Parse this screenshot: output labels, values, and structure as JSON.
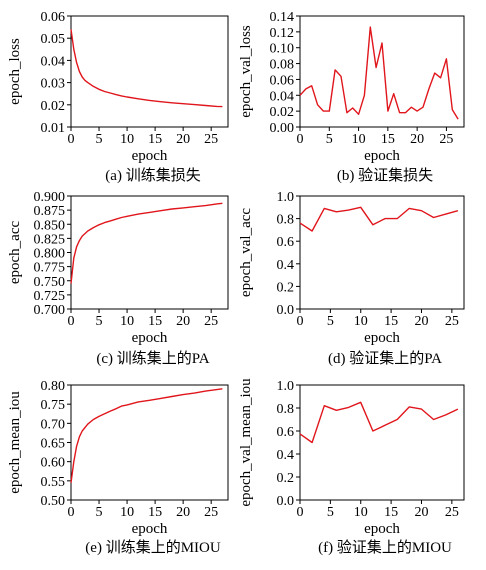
{
  "colors": {
    "line": "#e0161c",
    "axis": "#000000",
    "background": "#ffffff"
  },
  "chart_data": [
    {
      "type": "line",
      "caption": "(a) 训练集损失",
      "xlabel": "epoch",
      "ylabel": "epoch_loss",
      "xlim": [
        0,
        28
      ],
      "ylim": [
        0.01,
        0.06
      ],
      "xticks": [
        0,
        5,
        10,
        15,
        20,
        25
      ],
      "yticks": [
        0.01,
        0.02,
        0.03,
        0.04,
        0.05,
        0.06
      ],
      "ytick_labels": [
        "0.01",
        "0.02",
        "0.03",
        "0.04",
        "0.05",
        "0.06"
      ],
      "grid": false,
      "series": [
        {
          "x": [
            0,
            0.5,
            1,
            1.5,
            2,
            2.5,
            3,
            4,
            5,
            6,
            7,
            8,
            9,
            10,
            12,
            14,
            16,
            18,
            20,
            22,
            24,
            26,
            27
          ],
          "y": [
            0.054,
            0.045,
            0.039,
            0.035,
            0.0325,
            0.031,
            0.03,
            0.0283,
            0.027,
            0.026,
            0.0253,
            0.0246,
            0.024,
            0.0235,
            0.0227,
            0.022,
            0.0214,
            0.0209,
            0.0205,
            0.0201,
            0.0197,
            0.0193,
            0.0192
          ]
        }
      ]
    },
    {
      "type": "line",
      "caption": "(b) 验证集损失",
      "xlabel": "epoch",
      "ylabel": "epoch_val_loss",
      "xlim": [
        0,
        28
      ],
      "ylim": [
        0,
        0.14
      ],
      "xticks": [
        0,
        5,
        10,
        15,
        20,
        25
      ],
      "yticks": [
        0,
        0.02,
        0.04,
        0.06,
        0.08,
        0.1,
        0.12,
        0.14
      ],
      "ytick_labels": [
        "0.00",
        "0.02",
        "0.04",
        "0.06",
        "0.08",
        "0.10",
        "0.12",
        "0.14"
      ],
      "grid": false,
      "series": [
        {
          "x": [
            0,
            1,
            2,
            3,
            4,
            5,
            6,
            7,
            8,
            9,
            10,
            11,
            12,
            13,
            14,
            15,
            16,
            17,
            18,
            19,
            20,
            21,
            22,
            23,
            24,
            25,
            26,
            27
          ],
          "y": [
            0.04,
            0.048,
            0.052,
            0.028,
            0.02,
            0.02,
            0.072,
            0.064,
            0.018,
            0.024,
            0.016,
            0.04,
            0.126,
            0.075,
            0.106,
            0.02,
            0.042,
            0.018,
            0.018,
            0.025,
            0.02,
            0.025,
            0.048,
            0.068,
            0.062,
            0.086,
            0.022,
            0.01
          ]
        }
      ]
    },
    {
      "type": "line",
      "caption": "(c) 训练集上的PA",
      "xlabel": "epoch",
      "ylabel": "epoch_acc",
      "xlim": [
        0,
        28
      ],
      "ylim": [
        0.7,
        0.9
      ],
      "xticks": [
        0,
        5,
        10,
        15,
        20,
        25
      ],
      "yticks": [
        0.7,
        0.725,
        0.75,
        0.775,
        0.8,
        0.825,
        0.85,
        0.875,
        0.9
      ],
      "ytick_labels": [
        "0.700",
        "0.725",
        "0.750",
        "0.775",
        "0.800",
        "0.825",
        "0.850",
        "0.875",
        "0.900"
      ],
      "grid": false,
      "series": [
        {
          "x": [
            0,
            0.5,
            1,
            1.5,
            2,
            3,
            4,
            5,
            6,
            7,
            8,
            9,
            10,
            12,
            14,
            16,
            18,
            20,
            22,
            24,
            26,
            27
          ],
          "y": [
            0.745,
            0.79,
            0.81,
            0.821,
            0.829,
            0.838,
            0.844,
            0.849,
            0.853,
            0.856,
            0.859,
            0.862,
            0.864,
            0.868,
            0.871,
            0.874,
            0.877,
            0.879,
            0.881,
            0.883,
            0.886,
            0.887
          ]
        }
      ]
    },
    {
      "type": "line",
      "caption": "(d) 验证集上的PA",
      "xlabel": "epoch",
      "ylabel": "epoch_val_acc",
      "xlim": [
        0,
        27
      ],
      "ylim": [
        0,
        1.0
      ],
      "xticks": [
        0,
        5,
        10,
        15,
        20,
        25
      ],
      "yticks": [
        0,
        0.2,
        0.4,
        0.6,
        0.8,
        1.0
      ],
      "ytick_labels": [
        "0.0",
        "0.2",
        "0.4",
        "0.6",
        "0.8",
        "1.0"
      ],
      "grid": false,
      "series": [
        {
          "x": [
            0,
            2,
            4,
            6,
            8,
            10,
            12,
            14,
            16,
            18,
            20,
            22,
            24,
            26
          ],
          "y": [
            0.76,
            0.69,
            0.89,
            0.86,
            0.875,
            0.9,
            0.745,
            0.8,
            0.8,
            0.89,
            0.87,
            0.81,
            0.84,
            0.87
          ]
        }
      ]
    },
    {
      "type": "line",
      "caption": "(e) 训练集上的MIOU",
      "xlabel": "epoch",
      "ylabel": "epoch_mean_iou",
      "xlim": [
        0,
        28
      ],
      "ylim": [
        0.5,
        0.8
      ],
      "xticks": [
        0,
        5,
        10,
        15,
        20,
        25
      ],
      "yticks": [
        0.5,
        0.55,
        0.6,
        0.65,
        0.7,
        0.75,
        0.8
      ],
      "ytick_labels": [
        "0.50",
        "0.55",
        "0.60",
        "0.65",
        "0.70",
        "0.75",
        "0.80"
      ],
      "grid": false,
      "series": [
        {
          "x": [
            0,
            0.5,
            1,
            1.5,
            2,
            3,
            4,
            5,
            6,
            7,
            8,
            9,
            10,
            11,
            12,
            14,
            16,
            18,
            20,
            22,
            24,
            26,
            27
          ],
          "y": [
            0.545,
            0.6,
            0.64,
            0.665,
            0.68,
            0.698,
            0.71,
            0.718,
            0.725,
            0.732,
            0.738,
            0.745,
            0.748,
            0.752,
            0.756,
            0.76,
            0.765,
            0.77,
            0.775,
            0.779,
            0.784,
            0.788,
            0.79
          ]
        }
      ]
    },
    {
      "type": "line",
      "caption": "(f) 验证集上的MIOU",
      "xlabel": "epoch",
      "ylabel": "epoch_val_mean_iou",
      "xlim": [
        0,
        27
      ],
      "ylim": [
        0,
        1.0
      ],
      "xticks": [
        0,
        5,
        10,
        15,
        20,
        25
      ],
      "yticks": [
        0,
        0.2,
        0.4,
        0.6,
        0.8,
        1.0
      ],
      "ytick_labels": [
        "0.0",
        "0.2",
        "0.4",
        "0.6",
        "0.8",
        "1.0"
      ],
      "grid": false,
      "series": [
        {
          "x": [
            0,
            2,
            4,
            6,
            8,
            10,
            12,
            14,
            16,
            18,
            20,
            22,
            24,
            26
          ],
          "y": [
            0.575,
            0.5,
            0.82,
            0.78,
            0.805,
            0.85,
            0.6,
            0.65,
            0.7,
            0.81,
            0.79,
            0.7,
            0.74,
            0.79
          ]
        }
      ]
    }
  ]
}
